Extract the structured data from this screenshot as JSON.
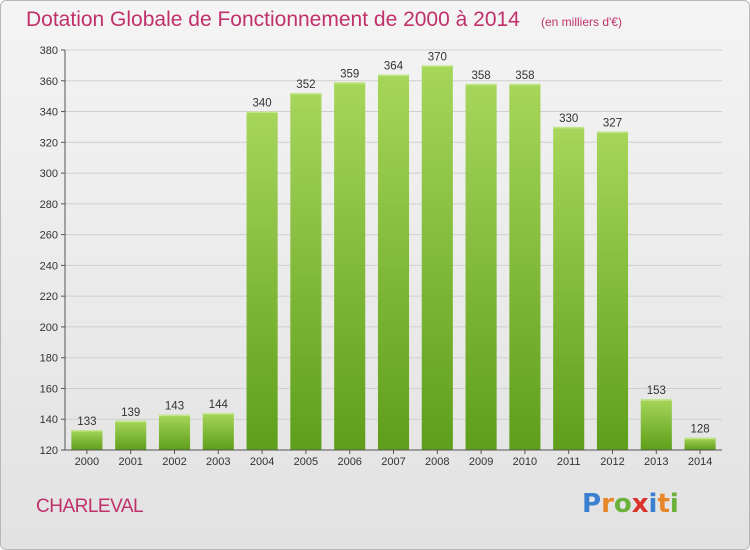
{
  "header": {
    "title": "Dotation Globale de Fonctionnement de 2000 à 2014",
    "unit": "(en milliers d'€)"
  },
  "footer": {
    "commune": "CHARLEVAL",
    "logo": [
      "P",
      "r",
      "o",
      "x",
      "i",
      "t",
      "i"
    ],
    "logo_colors": [
      "#3a7fd0",
      "#e8862a",
      "#6bb23a",
      "#d9332a",
      "#3a7fd0",
      "#e8862a",
      "#6bb23a"
    ]
  },
  "colors": {
    "bar_top": "#a6d65a",
    "bar_bottom": "#5e9e1a",
    "accent": "#c0306a",
    "grid": "#cfcfcf"
  },
  "chart_data": {
    "type": "bar",
    "categories": [
      "2000",
      "2001",
      "2002",
      "2003",
      "2004",
      "2005",
      "2006",
      "2007",
      "2008",
      "2009",
      "2010",
      "2011",
      "2012",
      "2013",
      "2014"
    ],
    "values": [
      133,
      139,
      143,
      144,
      340,
      352,
      359,
      364,
      370,
      358,
      358,
      330,
      327,
      153,
      128
    ],
    "yticks": [
      120,
      140,
      160,
      180,
      200,
      220,
      240,
      260,
      280,
      300,
      320,
      340,
      360,
      380
    ],
    "ylim": [
      120,
      380
    ],
    "title": "Dotation Globale de Fonctionnement de 2000 à 2014",
    "ylabel": "(en milliers d'€)",
    "grid": true,
    "data_labels": true
  }
}
